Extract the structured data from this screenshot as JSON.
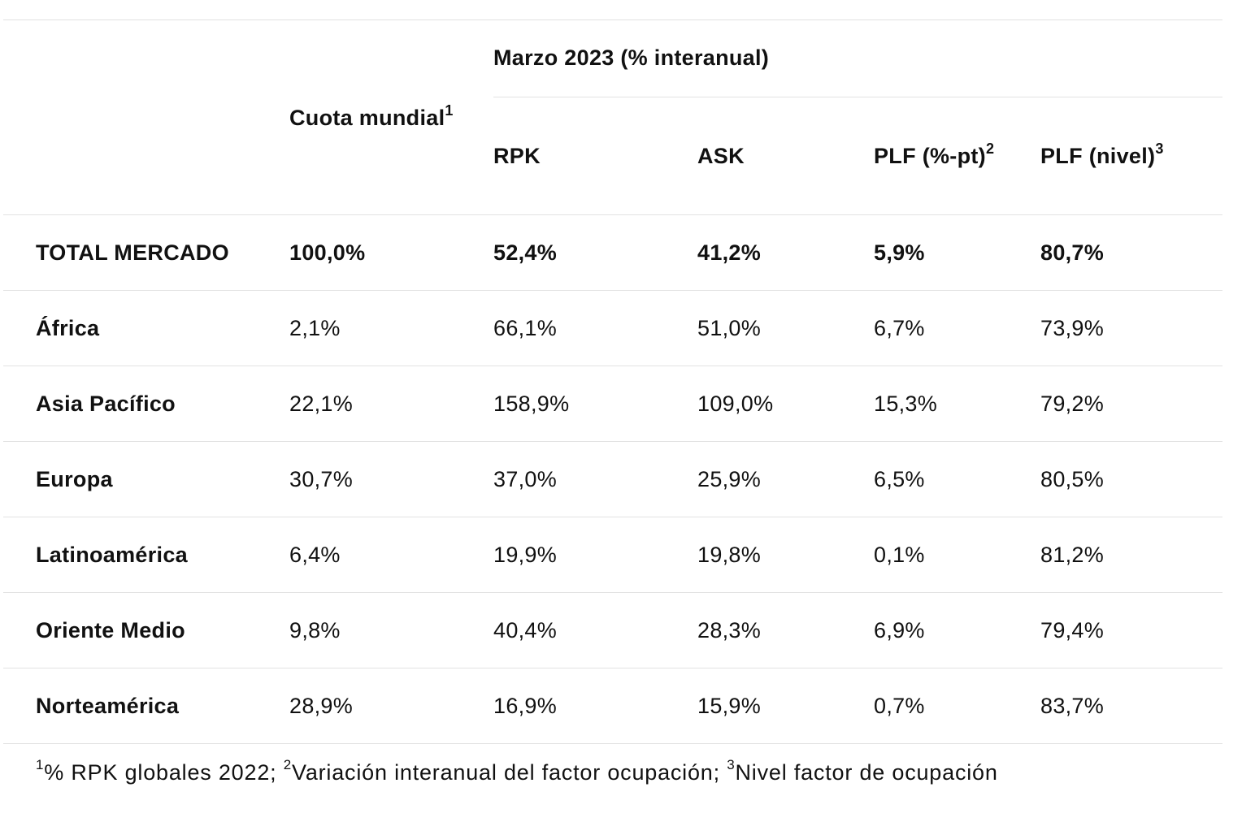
{
  "table": {
    "group_header": "Marzo 2023 (% interanual)",
    "headers": {
      "cuota": "Cuota mundial",
      "cuota_sup": "1",
      "rpk": "RPK",
      "ask": "ASK",
      "plf_pt": "PLF (%-pt)",
      "plf_pt_sup": "2",
      "plf_nivel": "PLF (nivel)",
      "plf_nivel_sup": "3"
    },
    "rows": [
      {
        "region": "TOTAL MERCADO",
        "cuota": "100,0%",
        "rpk": "52,4%",
        "ask": "41,2%",
        "plf_pt": "5,9%",
        "plf_nivel": "80,7%"
      },
      {
        "region": "África",
        "cuota": "2,1%",
        "rpk": "66,1%",
        "ask": "51,0%",
        "plf_pt": "6,7%",
        "plf_nivel": "73,9%"
      },
      {
        "region": "Asia Pacífico",
        "cuota": "22,1%",
        "rpk": "158,9%",
        "ask": "109,0%",
        "plf_pt": "15,3%",
        "plf_nivel": "79,2%"
      },
      {
        "region": "Europa",
        "cuota": "30,7%",
        "rpk": "37,0%",
        "ask": "25,9%",
        "plf_pt": "6,5%",
        "plf_nivel": "80,5%"
      },
      {
        "region": "Latinoamérica",
        "cuota": "6,4%",
        "rpk": "19,9%",
        "ask": "19,8%",
        "plf_pt": "0,1%",
        "plf_nivel": "81,2%"
      },
      {
        "region": "Oriente Medio",
        "cuota": "9,8%",
        "rpk": "40,4%",
        "ask": "28,3%",
        "plf_pt": "6,9%",
        "plf_nivel": "79,4%"
      },
      {
        "region": "Norteamérica",
        "cuota": "28,9%",
        "rpk": "16,9%",
        "ask": "15,9%",
        "plf_pt": "0,7%",
        "plf_nivel": "83,7%"
      }
    ]
  },
  "footnote": {
    "n1": "1",
    "t1": "% RPK globales 2022; ",
    "n2": "2",
    "t2": "Variación interanual del factor ocupación; ",
    "n3": "3",
    "t3": "Nivel factor de ocupación"
  }
}
